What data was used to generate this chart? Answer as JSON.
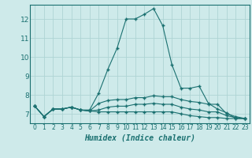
{
  "xlabel": "Humidex (Indice chaleur)",
  "bg_color": "#ceeaea",
  "line_color": "#1a7070",
  "grid_color": "#aed4d4",
  "xlim": [
    -0.5,
    23.5
  ],
  "ylim": [
    6.5,
    12.75
  ],
  "yticks": [
    7,
    8,
    9,
    10,
    11,
    12
  ],
  "xticks": [
    0,
    1,
    2,
    3,
    4,
    5,
    6,
    7,
    8,
    9,
    10,
    11,
    12,
    13,
    14,
    15,
    16,
    17,
    18,
    19,
    20,
    21,
    22,
    23
  ],
  "lines": [
    {
      "x": [
        0,
        1,
        2,
        3,
        4,
        5,
        6,
        7,
        8,
        9,
        10,
        11,
        12,
        13,
        14,
        15,
        16,
        17,
        18,
        19,
        20,
        21,
        22,
        23
      ],
      "y": [
        7.4,
        6.85,
        7.25,
        7.25,
        7.35,
        7.2,
        7.2,
        8.1,
        9.35,
        10.45,
        12.0,
        12.0,
        12.25,
        12.55,
        11.65,
        9.6,
        8.35,
        8.35,
        8.45,
        7.55,
        7.25,
        7.05,
        6.75,
        6.75
      ]
    },
    {
      "x": [
        0,
        1,
        2,
        3,
        4,
        5,
        6,
        7,
        8,
        9,
        10,
        11,
        12,
        13,
        14,
        15,
        16,
        17,
        18,
        19,
        20,
        21,
        22,
        23
      ],
      "y": [
        7.4,
        6.85,
        7.25,
        7.25,
        7.35,
        7.2,
        7.15,
        7.55,
        7.7,
        7.75,
        7.75,
        7.85,
        7.85,
        7.95,
        7.9,
        7.9,
        7.75,
        7.65,
        7.6,
        7.5,
        7.5,
        7.0,
        6.85,
        6.75
      ]
    },
    {
      "x": [
        0,
        1,
        2,
        3,
        4,
        5,
        6,
        7,
        8,
        9,
        10,
        11,
        12,
        13,
        14,
        15,
        16,
        17,
        18,
        19,
        20,
        21,
        22,
        23
      ],
      "y": [
        7.4,
        6.85,
        7.25,
        7.25,
        7.35,
        7.2,
        7.15,
        7.2,
        7.35,
        7.4,
        7.4,
        7.5,
        7.5,
        7.55,
        7.5,
        7.5,
        7.35,
        7.25,
        7.2,
        7.1,
        7.1,
        6.9,
        6.8,
        6.75
      ]
    },
    {
      "x": [
        0,
        1,
        2,
        3,
        4,
        5,
        6,
        7,
        8,
        9,
        10,
        11,
        12,
        13,
        14,
        15,
        16,
        17,
        18,
        19,
        20,
        21,
        22,
        23
      ],
      "y": [
        7.4,
        6.85,
        7.25,
        7.25,
        7.35,
        7.2,
        7.15,
        7.1,
        7.1,
        7.1,
        7.1,
        7.1,
        7.1,
        7.1,
        7.1,
        7.1,
        7.0,
        6.9,
        6.85,
        6.8,
        6.8,
        6.75,
        6.75,
        6.75
      ]
    }
  ]
}
